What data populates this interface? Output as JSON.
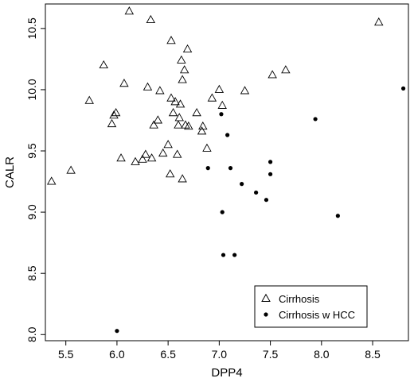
{
  "chart_data": {
    "type": "scatter",
    "title": "",
    "xlabel": "DPP4",
    "ylabel": "CALR",
    "xlim": [
      5.3,
      8.85
    ],
    "ylim": [
      7.95,
      10.7
    ],
    "x_ticks": [
      5.5,
      6.0,
      6.5,
      7.0,
      7.5,
      8.0,
      8.5
    ],
    "x_tick_labels": [
      "5.5",
      "6.0",
      "6.5",
      "7.0",
      "7.5",
      "8.0",
      "8.5"
    ],
    "y_ticks": [
      8.0,
      8.5,
      9.0,
      9.5,
      10.0,
      10.5
    ],
    "y_tick_labels": [
      "8.0",
      "8.5",
      "9.0",
      "9.5",
      "10.0",
      "10.5"
    ],
    "grid": false,
    "legend_position": "bottom-right",
    "series": [
      {
        "name": "Cirrhosis",
        "marker": "open-triangle",
        "points": [
          [
            5.36,
            9.25
          ],
          [
            5.55,
            9.34
          ],
          [
            5.73,
            9.91
          ],
          [
            5.87,
            10.2
          ],
          [
            5.95,
            9.72
          ],
          [
            5.97,
            9.79
          ],
          [
            5.99,
            9.81
          ],
          [
            6.04,
            9.44
          ],
          [
            6.07,
            10.05
          ],
          [
            6.12,
            10.64
          ],
          [
            6.18,
            9.41
          ],
          [
            6.25,
            9.43
          ],
          [
            6.28,
            9.47
          ],
          [
            6.3,
            10.02
          ],
          [
            6.33,
            10.57
          ],
          [
            6.34,
            9.44
          ],
          [
            6.36,
            9.71
          ],
          [
            6.4,
            9.75
          ],
          [
            6.42,
            9.99
          ],
          [
            6.45,
            9.48
          ],
          [
            6.5,
            9.55
          ],
          [
            6.52,
            9.31
          ],
          [
            6.53,
            10.4
          ],
          [
            6.53,
            9.93
          ],
          [
            6.55,
            9.81
          ],
          [
            6.57,
            9.9
          ],
          [
            6.59,
            9.47
          ],
          [
            6.6,
            9.71
          ],
          [
            6.61,
            9.77
          ],
          [
            6.62,
            9.88
          ],
          [
            6.63,
            10.24
          ],
          [
            6.64,
            10.08
          ],
          [
            6.64,
            9.27
          ],
          [
            6.66,
            10.16
          ],
          [
            6.67,
            9.71
          ],
          [
            6.69,
            10.33
          ],
          [
            6.7,
            9.7
          ],
          [
            6.78,
            9.81
          ],
          [
            6.83,
            9.66
          ],
          [
            6.84,
            9.7
          ],
          [
            6.88,
            9.52
          ],
          [
            6.93,
            9.93
          ],
          [
            7.0,
            10.0
          ],
          [
            7.03,
            9.87
          ],
          [
            7.25,
            9.99
          ],
          [
            7.52,
            10.12
          ],
          [
            7.65,
            10.16
          ],
          [
            8.56,
            10.55
          ]
        ]
      },
      {
        "name": "Cirrhosis w HCC",
        "marker": "filled-circle",
        "points": [
          [
            6.0,
            8.03
          ],
          [
            6.89,
            9.36
          ],
          [
            7.02,
            9.8
          ],
          [
            7.03,
            9.0
          ],
          [
            7.04,
            8.65
          ],
          [
            7.08,
            9.63
          ],
          [
            7.11,
            9.36
          ],
          [
            7.15,
            8.65
          ],
          [
            7.22,
            9.23
          ],
          [
            7.36,
            9.16
          ],
          [
            7.46,
            9.1
          ],
          [
            7.5,
            9.41
          ],
          [
            7.5,
            9.31
          ],
          [
            7.94,
            9.76
          ],
          [
            8.16,
            8.97
          ],
          [
            8.8,
            10.01
          ]
        ]
      }
    ]
  },
  "colors": {
    "ink": "#000000",
    "background": "#ffffff"
  }
}
